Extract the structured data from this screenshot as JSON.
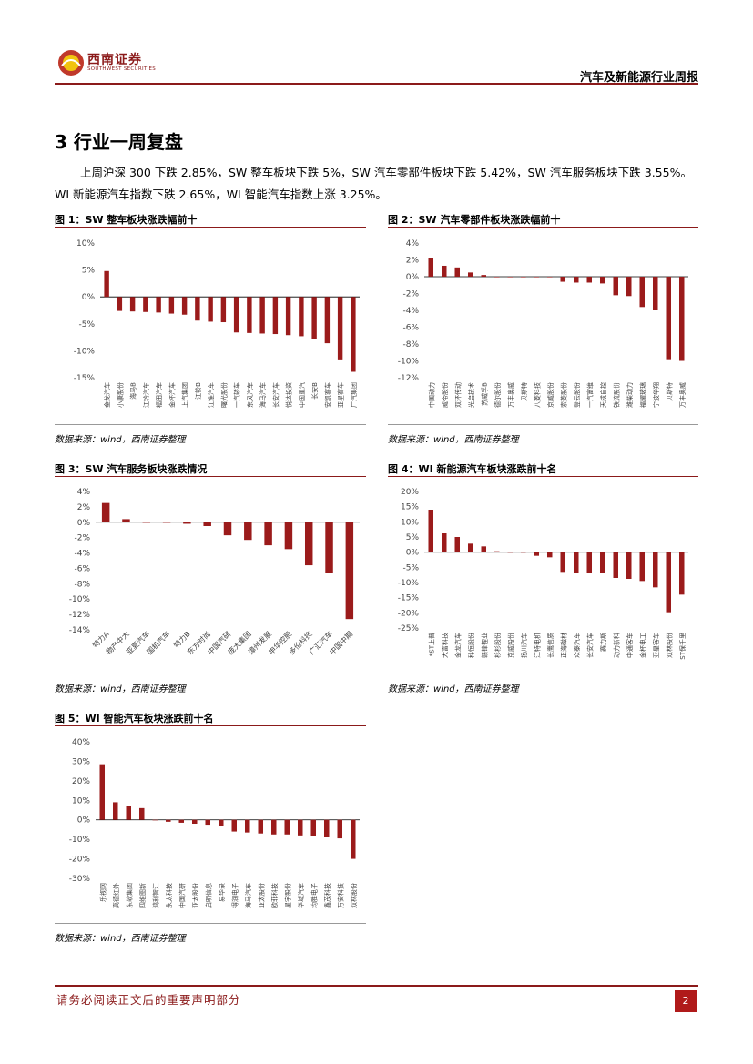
{
  "header": {
    "logo_cn": "西南证券",
    "logo_en": "SOUTHWEST SECURITIES",
    "report_title": "汽车及新能源行业周报"
  },
  "section": {
    "title": "3 行业一周复盘",
    "paragraph": "上周沪深 300 下跌 2.85%，SW 整车板块下跌 5%，SW 汽车零部件板块下跌 5.42%，SW 汽车服务板块下跌 3.55%。WI 新能源汽车指数下跌 2.65%，WI 智能汽车指数上涨 3.25%。"
  },
  "figures": [
    {
      "title": "图 1：SW 整车板块涨跌幅前十",
      "source": "数据来源：wind，西南证券整理"
    },
    {
      "title": "图 2：SW 汽车零部件板块涨跌幅前十",
      "source": "数据来源：wind，西南证券整理"
    },
    {
      "title": "图 3：SW 汽车服务板块涨跌情况",
      "source": "数据来源：wind，西南证券整理"
    },
    {
      "title": "图 4：WI 新能源汽车板块涨跌前十名",
      "source": "数据来源：wind，西南证券整理"
    },
    {
      "title": "图 5：WI 智能汽车板块涨跌前十名",
      "source": "数据来源：wind，西南证券整理"
    }
  ],
  "chart_data": [
    {
      "type": "bar",
      "title": "图 1：SW 整车板块涨跌幅前十",
      "color": "#9b1b1b",
      "ylim": [
        -15,
        10
      ],
      "yticks": [
        10,
        5,
        0,
        -5,
        -10,
        -15
      ],
      "unit": "%",
      "categories": [
        "金龙汽车",
        "小康股份",
        "海马B",
        "江铃汽车",
        "福田汽车",
        "金杯汽车",
        "上汽集团",
        "江铃B",
        "江淮汽车",
        "曙光股份",
        "一汽轿车",
        "东风汽车",
        "海马汽车",
        "长安汽车",
        "悦达投资",
        "中国重汽",
        "长安B",
        "安凯客车",
        "亚星客车",
        "广汽集团"
      ],
      "values": [
        4.8,
        -2.6,
        -2.7,
        -2.8,
        -2.9,
        -3.1,
        -3.3,
        -4.4,
        -4.6,
        -4.7,
        -6.6,
        -6.7,
        -6.8,
        -6.9,
        -7.1,
        -7.3,
        -7.9,
        -8.6,
        -11.6,
        -13.9
      ]
    },
    {
      "type": "bar",
      "title": "图 2：SW 汽车零部件板块涨跌幅前十",
      "color": "#9b1b1b",
      "ylim": [
        -12,
        4
      ],
      "yticks": [
        4,
        2,
        0,
        -2,
        -4,
        -6,
        -8,
        -10,
        -12
      ],
      "unit": "%",
      "categories": [
        "中国动力",
        "威帝股份",
        "双环传动",
        "光启技术",
        "苏威孚B",
        "德尔股份",
        "万丰奥威",
        "贝斯特",
        "八菱科技",
        "京威股份",
        "索菱股份",
        "登云股份",
        "一汽富维",
        "天成自控",
        "铁流股份",
        "潍柴动力",
        "福耀玻璃",
        "宁波华翔",
        "贝斯特",
        "万丰奥威"
      ],
      "values": [
        2.2,
        1.3,
        1.1,
        0.5,
        0.2,
        0,
        0,
        0,
        0,
        0,
        -0.6,
        -0.7,
        -0.7,
        -0.8,
        -2.2,
        -2.3,
        -3.6,
        -4,
        -9.8,
        -10
      ]
    },
    {
      "type": "bar",
      "title": "图 3：SW 汽车服务板块涨跌情况",
      "color": "#9b1b1b",
      "ylim": [
        -14,
        4
      ],
      "yticks": [
        4,
        2,
        0,
        -2,
        -4,
        -6,
        -8,
        -10,
        -12,
        -14
      ],
      "unit": "%",
      "categories": [
        "特力A",
        "物产中大",
        "亚夏汽车",
        "国机汽车",
        "特力B",
        "东方时尚",
        "中国汽研",
        "庞大集团",
        "漳州发展",
        "申华控股",
        "多伦科技",
        "广汇汽车",
        "中国中期"
      ],
      "values": [
        2.5,
        0.4,
        0,
        0,
        -0.2,
        -0.5,
        -1.7,
        -2.3,
        -3,
        -3.5,
        -5.6,
        -6.6,
        -12.6
      ]
    },
    {
      "type": "bar",
      "title": "图 4：WI 新能源汽车板块涨跌前十名",
      "color": "#9b1b1b",
      "ylim": [
        -25,
        20
      ],
      "yticks": [
        20,
        15,
        10,
        5,
        0,
        -5,
        -10,
        -15,
        -20,
        -25
      ],
      "unit": "%",
      "categories": [
        "*ST上普",
        "大富科技",
        "金龙汽车",
        "科恒股份",
        "赣锋锂业",
        "杉杉股份",
        "京威股份",
        "扬川汽车",
        "江特电机",
        "长鹰信质",
        "正海磁材",
        "众泰汽车",
        "长安汽车",
        "赛力斯",
        "动力新科",
        "中通客车",
        "金杯电工",
        "亚星客车",
        "双林股份",
        "ST保千里"
      ],
      "values": [
        14,
        6.2,
        5,
        2.8,
        1.9,
        0.3,
        0,
        0,
        -1.2,
        -1.7,
        -6.5,
        -6.7,
        -6.8,
        -7,
        -8.5,
        -8.8,
        -9.5,
        -11.6,
        -19.8,
        -14
      ]
    },
    {
      "type": "bar",
      "title": "图 5：WI 智能汽车板块涨跌前十名",
      "color": "#9b1b1b",
      "ylim": [
        -30,
        40
      ],
      "yticks": [
        40,
        30,
        20,
        10,
        0,
        -10,
        -20,
        -30
      ],
      "unit": "%",
      "categories": [
        "乐视网",
        "高德红外",
        "东软集团",
        "四维图新",
        "鸿利智汇",
        "永太科技",
        "中国汽研",
        "亚太股份",
        "启明信息",
        "易华录",
        "得润电子",
        "海马汽车",
        "亚太股份",
        "欧菲科技",
        "星宇股份",
        "华域汽车",
        "均胜电子",
        "鑫茂科技",
        "万安科技",
        "双林股份"
      ],
      "values": [
        28.5,
        9,
        7,
        6,
        0,
        -1,
        -1.5,
        -2,
        -2.5,
        -3,
        -6,
        -6.5,
        -7,
        -7.5,
        -7.5,
        -8,
        -8.5,
        -9,
        -9.5,
        -20
      ]
    }
  ],
  "footer": {
    "disclaimer": "请务必阅读正文后的重要声明部分",
    "page_number": "2"
  }
}
